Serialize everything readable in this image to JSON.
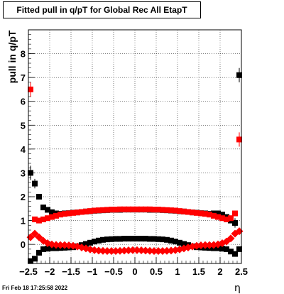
{
  "chart_data": {
    "type": "scatter",
    "title": "Fitted pull in q/pT for Global Rec All EtapT",
    "ylabel": "pull in q/pT",
    "xlabel": "η",
    "xlim": [
      -2.5,
      2.5
    ],
    "ylim": [
      -0.8,
      9.0
    ],
    "xticks": [
      -2.5,
      -2,
      -1.5,
      -1,
      -0.5,
      0,
      0.5,
      1,
      1.5,
      2,
      2.5
    ],
    "xtick_labels": [
      "−2.5",
      "−2",
      "−1.5",
      "−1",
      "−0.5",
      "0",
      "0.5",
      "1",
      "1.5",
      "2",
      "2.5"
    ],
    "yticks": [
      0,
      1,
      2,
      3,
      4,
      5,
      6,
      7,
      8
    ],
    "ytick_labels": [
      "0",
      "1",
      "2",
      "3",
      "4",
      "5",
      "6",
      "7",
      "8"
    ],
    "grid": true,
    "series": [
      {
        "marker": "square",
        "color": "#000000",
        "x": [
          -2.45,
          -2.35,
          -2.25,
          -2.15,
          -2.05,
          -1.95,
          -1.85,
          -1.75,
          -1.65,
          -1.55,
          -1.45,
          -1.35,
          -1.25,
          -1.15,
          -1.05,
          -0.95,
          -0.85,
          -0.75,
          -0.65,
          -0.55,
          -0.45,
          -0.35,
          -0.25,
          -0.15,
          -0.05,
          0.05,
          0.15,
          0.25,
          0.35,
          0.45,
          0.55,
          0.65,
          0.75,
          0.85,
          0.95,
          1.05,
          1.15,
          1.25,
          1.35,
          1.45,
          1.55,
          1.65,
          1.75,
          1.85,
          1.95,
          2.05,
          2.15,
          2.25,
          2.35,
          2.45
        ],
        "y": [
          -0.7,
          -0.6,
          -0.35,
          -0.2,
          -0.18,
          -0.16,
          -0.16,
          -0.15,
          -0.14,
          -0.13,
          -0.12,
          -0.08,
          -0.03,
          0.02,
          0.07,
          0.12,
          0.16,
          0.19,
          0.21,
          0.22,
          0.23,
          0.23,
          0.24,
          0.24,
          0.24,
          0.24,
          0.24,
          0.24,
          0.23,
          0.23,
          0.22,
          0.21,
          0.19,
          0.16,
          0.12,
          0.07,
          0.02,
          -0.03,
          -0.08,
          -0.12,
          -0.13,
          -0.14,
          -0.15,
          -0.16,
          -0.16,
          -0.18,
          -0.2,
          -0.3,
          -0.4,
          -0.2
        ],
        "yerr": [
          0.05,
          0.05,
          0.04,
          0.03,
          0.02,
          0.02,
          0.02,
          0.02,
          0.02,
          0.02,
          0.02,
          0.02,
          0.02,
          0.02,
          0.02,
          0.02,
          0.02,
          0.02,
          0.02,
          0.02,
          0.02,
          0.02,
          0.02,
          0.02,
          0.02,
          0.02,
          0.02,
          0.02,
          0.02,
          0.02,
          0.02,
          0.02,
          0.02,
          0.02,
          0.02,
          0.02,
          0.02,
          0.02,
          0.02,
          0.02,
          0.02,
          0.02,
          0.02,
          0.02,
          0.02,
          0.02,
          0.03,
          0.04,
          0.05,
          0.05
        ]
      },
      {
        "marker": "square",
        "color": "#000000",
        "x": [
          -2.45,
          -2.35,
          -2.25,
          -2.15,
          -2.05,
          -1.95,
          -1.85,
          -1.75,
          -1.65,
          -1.55,
          -1.45,
          -1.35,
          -1.25,
          -1.15,
          -1.05,
          -0.95,
          -0.85,
          -0.75,
          -0.65,
          -0.55,
          -0.45,
          -0.35,
          -0.25,
          -0.15,
          -0.05,
          0.05,
          0.15,
          0.25,
          0.35,
          0.45,
          0.55,
          0.65,
          0.75,
          0.85,
          0.95,
          1.05,
          1.15,
          1.25,
          1.35,
          1.45,
          1.55,
          1.65,
          1.75,
          1.85,
          1.95,
          2.05,
          2.15,
          2.25,
          2.35,
          2.45
        ],
        "y": [
          3.0,
          2.55,
          2.0,
          1.55,
          1.45,
          1.35,
          1.3,
          1.28,
          1.3,
          1.31,
          1.33,
          1.34,
          1.36,
          1.38,
          1.39,
          1.41,
          1.42,
          1.43,
          1.44,
          1.45,
          1.45,
          1.45,
          1.46,
          1.46,
          1.46,
          1.46,
          1.46,
          1.46,
          1.45,
          1.45,
          1.45,
          1.44,
          1.43,
          1.42,
          1.41,
          1.39,
          1.38,
          1.36,
          1.34,
          1.33,
          1.31,
          1.3,
          1.28,
          1.3,
          1.3,
          1.25,
          1.15,
          1.0,
          0.9,
          7.1
        ],
        "yerr": [
          0.3,
          0.2,
          0.1,
          0.05,
          0.03,
          0.02,
          0.02,
          0.02,
          0.02,
          0.02,
          0.02,
          0.02,
          0.02,
          0.02,
          0.02,
          0.02,
          0.02,
          0.02,
          0.02,
          0.02,
          0.02,
          0.02,
          0.02,
          0.02,
          0.02,
          0.02,
          0.02,
          0.02,
          0.02,
          0.02,
          0.02,
          0.02,
          0.02,
          0.02,
          0.02,
          0.02,
          0.02,
          0.02,
          0.02,
          0.02,
          0.02,
          0.02,
          0.02,
          0.02,
          0.02,
          0.03,
          0.05,
          0.1,
          0.2,
          0.3
        ]
      },
      {
        "marker": "diamond",
        "color": "#ff0000",
        "x": [
          -2.45,
          -2.35,
          -2.25,
          -2.15,
          -2.05,
          -1.95,
          -1.85,
          -1.75,
          -1.65,
          -1.55,
          -1.45,
          -1.35,
          -1.25,
          -1.15,
          -1.05,
          -0.95,
          -0.85,
          -0.75,
          -0.65,
          -0.55,
          -0.45,
          -0.35,
          -0.25,
          -0.15,
          -0.05,
          0.05,
          0.15,
          0.25,
          0.35,
          0.45,
          0.55,
          0.65,
          0.75,
          0.85,
          0.95,
          1.05,
          1.15,
          1.25,
          1.35,
          1.45,
          1.55,
          1.65,
          1.75,
          1.85,
          1.95,
          2.05,
          2.15,
          2.25,
          2.35,
          2.45
        ],
        "y": [
          0.3,
          0.45,
          0.3,
          0.15,
          0.05,
          0.0,
          -0.02,
          -0.03,
          -0.03,
          -0.04,
          -0.06,
          -0.09,
          -0.13,
          -0.17,
          -0.21,
          -0.24,
          -0.26,
          -0.27,
          -0.28,
          -0.28,
          -0.28,
          -0.27,
          -0.26,
          -0.25,
          -0.24,
          -0.24,
          -0.25,
          -0.26,
          -0.27,
          -0.28,
          -0.28,
          -0.28,
          -0.27,
          -0.26,
          -0.24,
          -0.21,
          -0.17,
          -0.13,
          -0.09,
          -0.06,
          -0.04,
          -0.03,
          -0.03,
          -0.02,
          0.0,
          0.05,
          0.12,
          0.25,
          0.45,
          0.55
        ],
        "yerr": [
          0.05,
          0.05,
          0.04,
          0.03,
          0.02,
          0.02,
          0.02,
          0.02,
          0.02,
          0.02,
          0.02,
          0.02,
          0.02,
          0.02,
          0.02,
          0.02,
          0.02,
          0.02,
          0.02,
          0.02,
          0.02,
          0.02,
          0.02,
          0.02,
          0.02,
          0.02,
          0.02,
          0.02,
          0.02,
          0.02,
          0.02,
          0.02,
          0.02,
          0.02,
          0.02,
          0.02,
          0.02,
          0.02,
          0.02,
          0.02,
          0.02,
          0.02,
          0.02,
          0.02,
          0.02,
          0.02,
          0.03,
          0.04,
          0.05,
          0.05
        ]
      },
      {
        "marker": "square",
        "color": "#ff0000",
        "x": [
          -2.45,
          -2.35,
          -2.25,
          -2.15,
          -2.05,
          -1.95,
          -1.85,
          -1.75,
          -1.65,
          -1.55,
          -1.45,
          -1.35,
          -1.25,
          -1.15,
          -1.05,
          -0.95,
          -0.85,
          -0.75,
          -0.65,
          -0.55,
          -0.45,
          -0.35,
          -0.25,
          -0.15,
          -0.05,
          0.05,
          0.15,
          0.25,
          0.35,
          0.45,
          0.55,
          0.65,
          0.75,
          0.85,
          0.95,
          1.05,
          1.15,
          1.25,
          1.35,
          1.45,
          1.55,
          1.65,
          1.75,
          1.85,
          1.95,
          2.05,
          2.15,
          2.25,
          2.35,
          2.45
        ],
        "y": [
          6.5,
          1.05,
          1.0,
          1.05,
          1.1,
          1.15,
          1.2,
          1.25,
          1.28,
          1.3,
          1.32,
          1.34,
          1.36,
          1.38,
          1.4,
          1.42,
          1.43,
          1.44,
          1.45,
          1.46,
          1.46,
          1.47,
          1.47,
          1.47,
          1.47,
          1.47,
          1.47,
          1.47,
          1.47,
          1.46,
          1.46,
          1.45,
          1.44,
          1.43,
          1.42,
          1.4,
          1.38,
          1.36,
          1.34,
          1.32,
          1.3,
          1.28,
          1.25,
          1.2,
          1.15,
          1.1,
          1.05,
          1.1,
          1.3,
          4.4
        ],
        "yerr": [
          0.3,
          0.05,
          0.04,
          0.03,
          0.02,
          0.02,
          0.02,
          0.02,
          0.02,
          0.02,
          0.02,
          0.02,
          0.02,
          0.02,
          0.02,
          0.02,
          0.02,
          0.02,
          0.02,
          0.02,
          0.02,
          0.02,
          0.02,
          0.02,
          0.02,
          0.02,
          0.02,
          0.02,
          0.02,
          0.02,
          0.02,
          0.02,
          0.02,
          0.02,
          0.02,
          0.02,
          0.02,
          0.02,
          0.02,
          0.02,
          0.02,
          0.02,
          0.02,
          0.02,
          0.02,
          0.02,
          0.03,
          0.04,
          0.05,
          0.3
        ]
      }
    ]
  },
  "timestamp": "Fri Feb 18 17:25:58 2022"
}
